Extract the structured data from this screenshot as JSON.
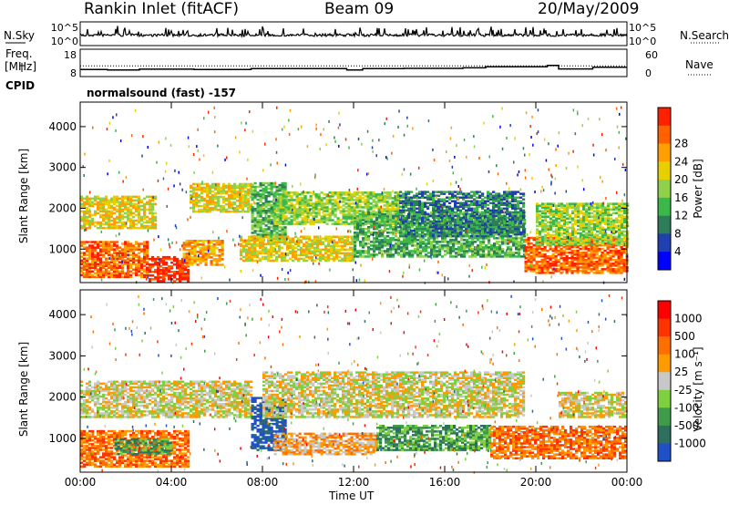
{
  "header": {
    "site": "Rankin Inlet (fitACF)",
    "beam": "Beam 09",
    "date": "20/May/2009"
  },
  "left_labels": {
    "nsky": "N.Sky",
    "freq": "Freq.",
    "freq_unit": "[MHz]",
    "cpid": "CPID"
  },
  "right_labels": {
    "nsearch": "N.Search",
    "nave": "Nave"
  },
  "cpid_text": "normalsound (fast) -157",
  "colors": {
    "power": [
      "#0000ff",
      "#2040b0",
      "#2e7d5a",
      "#3cb84a",
      "#8fd14a",
      "#e8d000",
      "#ffa000",
      "#ff6000",
      "#ff2000"
    ],
    "velocity": [
      "#2050c8",
      "#2e6f5e",
      "#3f9c4a",
      "#7fd040",
      "#c8c8c8",
      "#ff9a00",
      "#ff6e00",
      "#ff3300",
      "#ff0000"
    ]
  },
  "chart_data": [
    {
      "type": "line",
      "panel": "noise",
      "ylabel": "N.Sky",
      "yticks": [
        "10^5",
        "10^0"
      ],
      "right_yticks": [
        "10^5",
        "10^0"
      ],
      "right_label": "N.Search"
    },
    {
      "type": "line",
      "panel": "frequency-nave",
      "ylabel": "Freq. [MHz]",
      "yticks": [
        8,
        18
      ],
      "ylim": [
        8,
        18
      ],
      "right_yticks": [
        0,
        60
      ],
      "right_label": "Nave",
      "frequency_steps": [
        {
          "t": 0,
          "v": 10.6
        },
        {
          "t": 1.2,
          "v": 10.4
        },
        {
          "t": 2.6,
          "v": 10.7
        },
        {
          "t": 5.0,
          "v": 10.6
        },
        {
          "t": 7.5,
          "v": 10.9
        },
        {
          "t": 11.4,
          "v": 10.9
        },
        {
          "t": 11.7,
          "v": 10.4
        },
        {
          "t": 12.4,
          "v": 10.9
        },
        {
          "t": 14.2,
          "v": 11.0
        },
        {
          "t": 16.8,
          "v": 11.2
        },
        {
          "t": 17.8,
          "v": 11.6
        },
        {
          "t": 19.6,
          "v": 11.6
        },
        {
          "t": 20.5,
          "v": 12.1
        },
        {
          "t": 21.0,
          "v": 10.8
        },
        {
          "t": 22.5,
          "v": 11.4
        },
        {
          "t": 24,
          "v": 11.4
        }
      ]
    },
    {
      "type": "heatmap",
      "panel": "power",
      "ylabel": "Slant Range [km]",
      "xlabel": "Time UT",
      "xlim": [
        0,
        24
      ],
      "ylim": [
        180,
        4600
      ],
      "yticks": [
        1000,
        2000,
        3000,
        4000
      ],
      "xticks": [
        "00:00",
        "04:00",
        "08:00",
        "12:00",
        "16:00",
        "20:00",
        "00:00"
      ],
      "colorbar_label": "Power [dB]",
      "colorbar_ticks": [
        4,
        8,
        12,
        16,
        20,
        24,
        28
      ],
      "bands": [
        {
          "t0": 0.0,
          "t1": 3.3,
          "r0": 1500,
          "r1": 2300,
          "level": 5
        },
        {
          "t0": 0.0,
          "t1": 3.0,
          "r0": 300,
          "r1": 1200,
          "level": 7
        },
        {
          "t0": 3.0,
          "t1": 4.8,
          "r0": 200,
          "r1": 800,
          "level": 8
        },
        {
          "t0": 4.5,
          "t1": 6.2,
          "r0": 600,
          "r1": 1200,
          "level": 6
        },
        {
          "t0": 4.8,
          "t1": 7.5,
          "r0": 1900,
          "r1": 2600,
          "level": 5
        },
        {
          "t0": 7.5,
          "t1": 9.0,
          "r0": 1200,
          "r1": 2600,
          "level": 3
        },
        {
          "t0": 7.0,
          "t1": 12.0,
          "r0": 700,
          "r1": 1300,
          "level": 5
        },
        {
          "t0": 8.5,
          "t1": 14.0,
          "r0": 1600,
          "r1": 2400,
          "level": 4
        },
        {
          "t0": 12.0,
          "t1": 19.5,
          "r0": 800,
          "r1": 1900,
          "level": 3
        },
        {
          "t0": 14.0,
          "t1": 19.5,
          "r0": 1300,
          "r1": 2400,
          "level": 2
        },
        {
          "t0": 19.5,
          "t1": 24.0,
          "r0": 400,
          "r1": 1300,
          "level": 7
        },
        {
          "t0": 20.0,
          "t1": 24.0,
          "r0": 1100,
          "r1": 2100,
          "level": 4
        }
      ]
    },
    {
      "type": "heatmap",
      "panel": "velocity",
      "ylabel": "Slant Range [km]",
      "xlabel": "Time UT",
      "xlim": [
        0,
        24
      ],
      "ylim": [
        180,
        4600
      ],
      "yticks": [
        1000,
        2000,
        3000,
        4000
      ],
      "xticks": [
        "00:00",
        "04:00",
        "08:00",
        "12:00",
        "16:00",
        "20:00",
        "00:00"
      ],
      "colorbar_label": "Velocity [m s⁻¹]",
      "colorbar_ticks": [
        "1000",
        "500",
        "100",
        "25",
        "-25",
        "-100",
        "-500",
        "-1000"
      ],
      "bands": [
        {
          "t0": 0.0,
          "t1": 7.5,
          "r0": 1500,
          "r1": 2400,
          "level": 4
        },
        {
          "t0": 0.0,
          "t1": 4.8,
          "r0": 300,
          "r1": 1200,
          "level": 6
        },
        {
          "t0": 1.5,
          "t1": 4.0,
          "r0": 600,
          "r1": 1000,
          "level": 2
        },
        {
          "t0": 7.5,
          "t1": 9.0,
          "r0": 700,
          "r1": 2000,
          "level": 0
        },
        {
          "t0": 8.0,
          "t1": 19.5,
          "r0": 1500,
          "r1": 2600,
          "level": 4
        },
        {
          "t0": 8.5,
          "t1": 13.0,
          "r0": 600,
          "r1": 1100,
          "level": 5
        },
        {
          "t0": 13.0,
          "t1": 18.0,
          "r0": 700,
          "r1": 1300,
          "level": 2
        },
        {
          "t0": 18.0,
          "t1": 24.0,
          "r0": 500,
          "r1": 1300,
          "level": 6
        },
        {
          "t0": 21.0,
          "t1": 24.0,
          "r0": 1500,
          "r1": 2100,
          "level": 4
        }
      ]
    }
  ]
}
